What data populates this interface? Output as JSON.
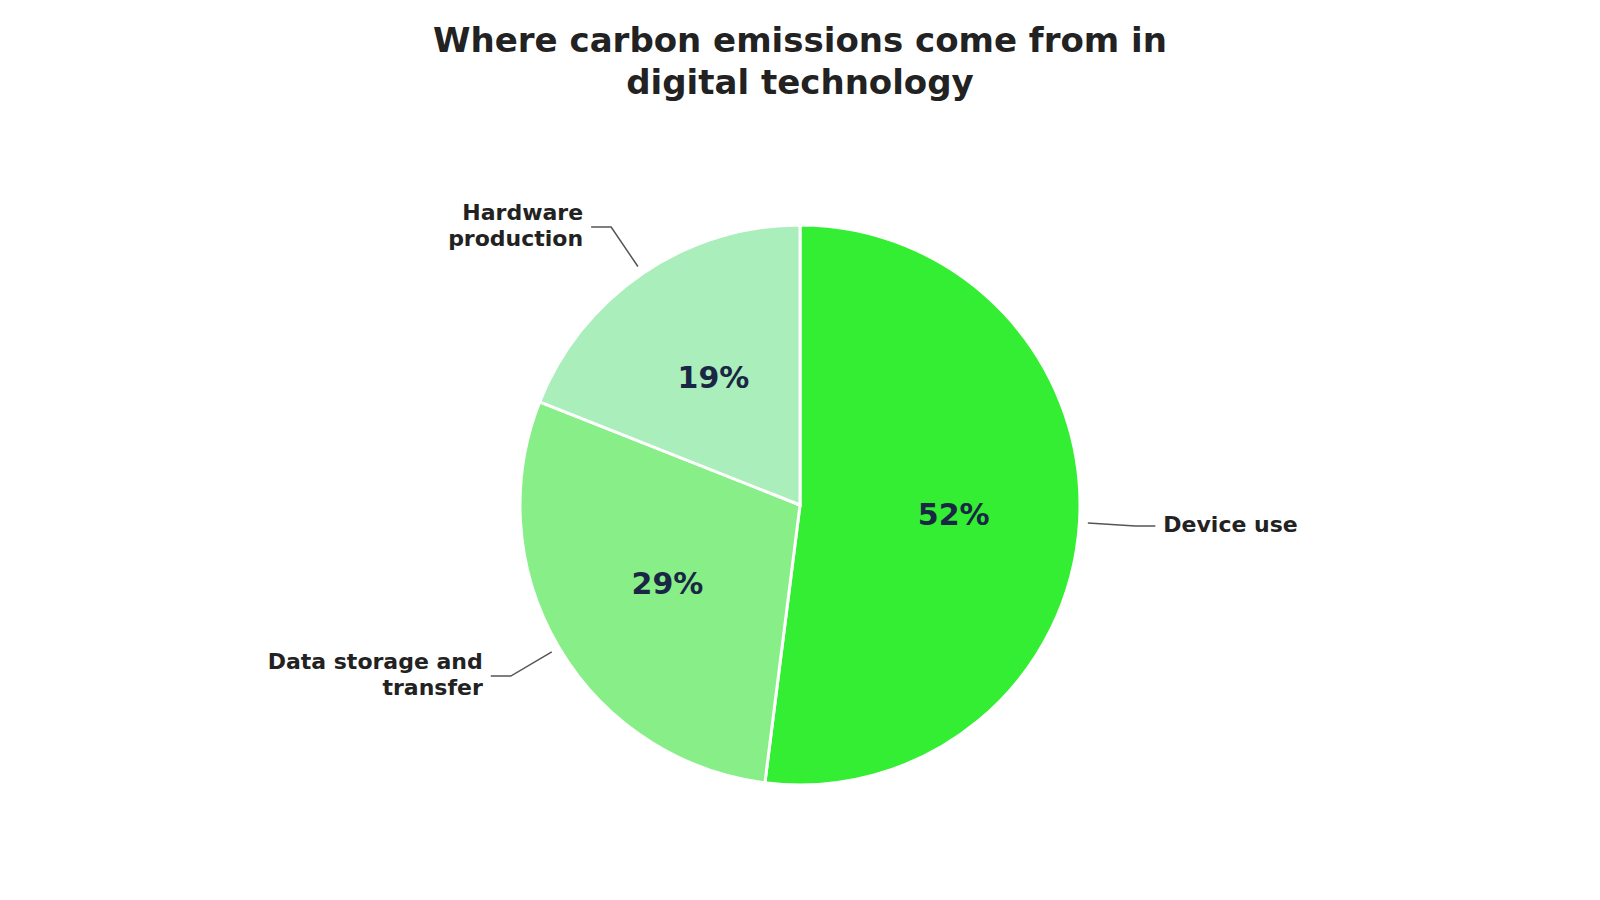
{
  "chart_data": {
    "type": "pie",
    "title": "Where carbon emissions come from in\ndigital technology",
    "categories": [
      "Device use",
      "Data storage and\ntransfer",
      "Hardware\nproduction"
    ],
    "values": [
      52,
      29,
      19
    ],
    "value_labels": [
      "52%",
      "29%",
      "19%"
    ],
    "colors": [
      "#33ee33",
      "#88ee88",
      "#aaeebb"
    ],
    "data_labels": true
  }
}
